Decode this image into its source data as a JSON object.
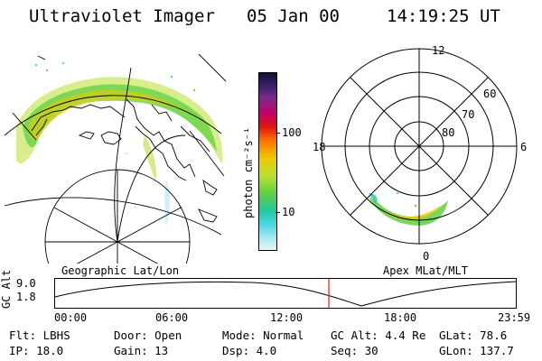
{
  "header": {
    "instrument": "Ultraviolet Imager",
    "date": "05 Jan 00",
    "time": "14:19:25 UT"
  },
  "left_panel": {
    "caption": "Geographic Lat/Lon"
  },
  "right_panel": {
    "caption": "Apex MLat/MLT",
    "mlt_labels": [
      "12",
      "18",
      "6",
      "0"
    ],
    "lat_labels": [
      "60",
      "70",
      "80"
    ]
  },
  "colorbar": {
    "unit_label": "photon cm⁻²s⁻¹",
    "tick_labels": [
      "100",
      "10"
    ],
    "colors": [
      "#101030",
      "#3a1e6e",
      "#7a2a8c",
      "#c00070",
      "#e01010",
      "#ff7000",
      "#f0c800",
      "#b8e030",
      "#60d040",
      "#20c8a0",
      "#50d8e8",
      "#a8e8f0",
      "#e8f4f8"
    ]
  },
  "altitude_plot": {
    "ylabel": "GC Alt",
    "y_ticks": [
      "9.0",
      "1.8"
    ],
    "x_ticks": [
      "00:00",
      "06:00",
      "12:00",
      "18:00",
      "23:59"
    ],
    "current_time_marker_color": "#e02020"
  },
  "info": {
    "filter": "Flt: LBHS",
    "door": "Door: Open",
    "mode": "Mode: Normal",
    "gc_alt": "GC Alt: 4.4 Re",
    "glat": "GLat:  78.6",
    "ip": "IP: 18.0",
    "gain": "Gain: 13",
    "dsp": "Dsp:    4.0",
    "seq": "Seq: 30",
    "glon": "GLon: 137.7"
  }
}
